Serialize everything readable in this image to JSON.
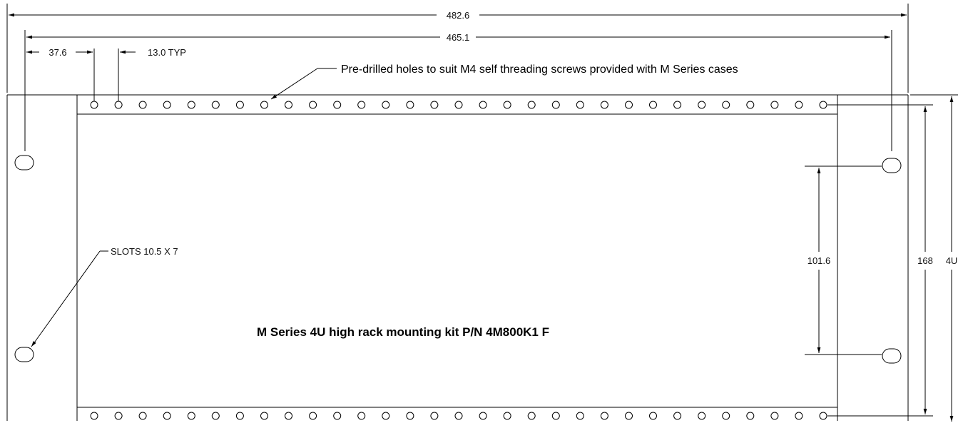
{
  "dimensions": {
    "overall_width": "482.6",
    "mount_spacing": "465.1",
    "first_hole_offset": "37.6",
    "hole_pitch": "13.0 TYP",
    "slot_spacing": "101.6",
    "panel_height": "168",
    "rack_units": "4U"
  },
  "notes": {
    "holes_note": "Pre-drilled holes to suit M4 self threading screws provided with M Series cases",
    "slots_note": "SLOTS 10.5 X 7"
  },
  "title": "M Series 4U high rack mounting kit P/N 4M800K1  F",
  "hole_rows": {
    "holes_per_row": 31,
    "row_count": 2
  },
  "slots": {
    "count": 4
  }
}
